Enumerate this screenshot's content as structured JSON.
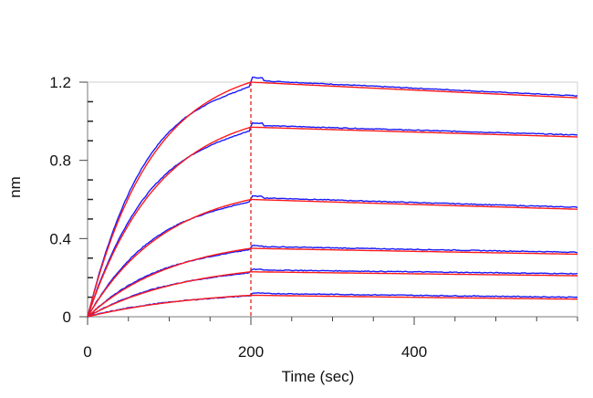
{
  "chart_data": {
    "type": "line",
    "xlabel": "Time (sec)",
    "ylabel": "nm",
    "xlim": [
      0,
      600
    ],
    "ylim": [
      0,
      1.2
    ],
    "xticks": [
      0,
      200,
      400
    ],
    "yticks": [
      0,
      0.4,
      0.8,
      1.2
    ],
    "xtick_labels": [
      "0",
      "200",
      "400"
    ],
    "ytick_labels": [
      "0",
      "0.4",
      "0.8",
      "1.2"
    ],
    "grid": false,
    "association_end": 200,
    "colors": {
      "measured": "#1a1aff",
      "fit": "#ff1a1a",
      "marker_line": "#e0201b",
      "axis": "#777777"
    },
    "curves": [
      {
        "max": 1.2,
        "end": 1.12
      },
      {
        "max": 0.97,
        "end": 0.92
      },
      {
        "max": 0.6,
        "end": 0.55
      },
      {
        "max": 0.35,
        "end": 0.32
      },
      {
        "max": 0.23,
        "end": 0.21
      },
      {
        "max": 0.11,
        "end": 0.09
      }
    ]
  }
}
